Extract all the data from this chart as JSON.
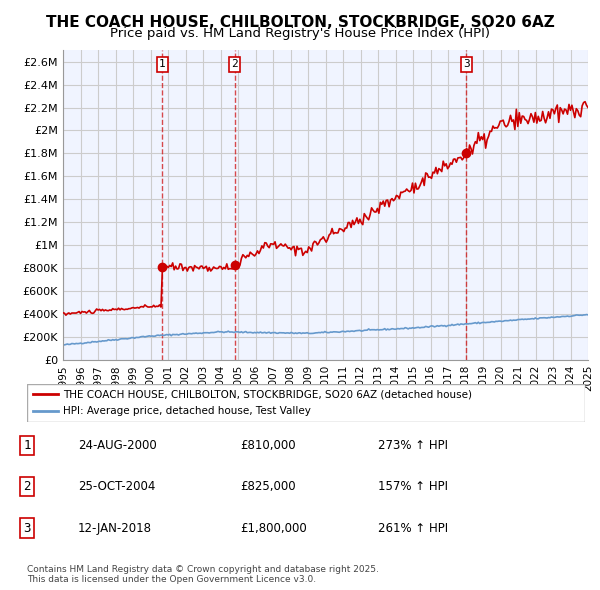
{
  "title": "THE COACH HOUSE, CHILBOLTON, STOCKBRIDGE, SO20 6AZ",
  "subtitle": "Price paid vs. HM Land Registry's House Price Index (HPI)",
  "title_fontsize": 11,
  "subtitle_fontsize": 9.5,
  "ylim": [
    0,
    2700000
  ],
  "yticks": [
    0,
    200000,
    400000,
    600000,
    800000,
    1000000,
    1200000,
    1400000,
    1600000,
    1800000,
    2000000,
    2200000,
    2400000,
    2600000
  ],
  "ytick_labels": [
    "£0",
    "£200K",
    "£400K",
    "£600K",
    "£800K",
    "£1M",
    "£1.2M",
    "£1.4M",
    "£1.6M",
    "£1.8M",
    "£2M",
    "£2.2M",
    "£2.4M",
    "£2.6M"
  ],
  "x_start_year": 1995,
  "x_end_year": 2025,
  "grid_color": "#cccccc",
  "hpi_color": "#6699cc",
  "price_color": "#cc0000",
  "sale_marker_color": "#cc0000",
  "vline_color": "#cc0000",
  "sales": [
    {
      "date_num": 5.67,
      "price": 810000,
      "label": "1"
    },
    {
      "date_num": 9.81,
      "price": 825000,
      "label": "2"
    },
    {
      "date_num": 23.04,
      "price": 1800000,
      "label": "3"
    }
  ],
  "legend_house_label": "THE COACH HOUSE, CHILBOLTON, STOCKBRIDGE, SO20 6AZ (detached house)",
  "legend_hpi_label": "HPI: Average price, detached house, Test Valley",
  "table_rows": [
    {
      "num": "1",
      "date": "24-AUG-2000",
      "price": "£810,000",
      "pct": "273% ↑ HPI"
    },
    {
      "num": "2",
      "date": "25-OCT-2004",
      "price": "£825,000",
      "pct": "157% ↑ HPI"
    },
    {
      "num": "3",
      "date": "12-JAN-2018",
      "price": "£1,800,000",
      "pct": "261% ↑ HPI"
    }
  ],
  "footnote": "Contains HM Land Registry data © Crown copyright and database right 2025.\nThis data is licensed under the Open Government Licence v3.0.",
  "bg_color": "#ffffff",
  "plot_bg_color": "#f0f4ff"
}
